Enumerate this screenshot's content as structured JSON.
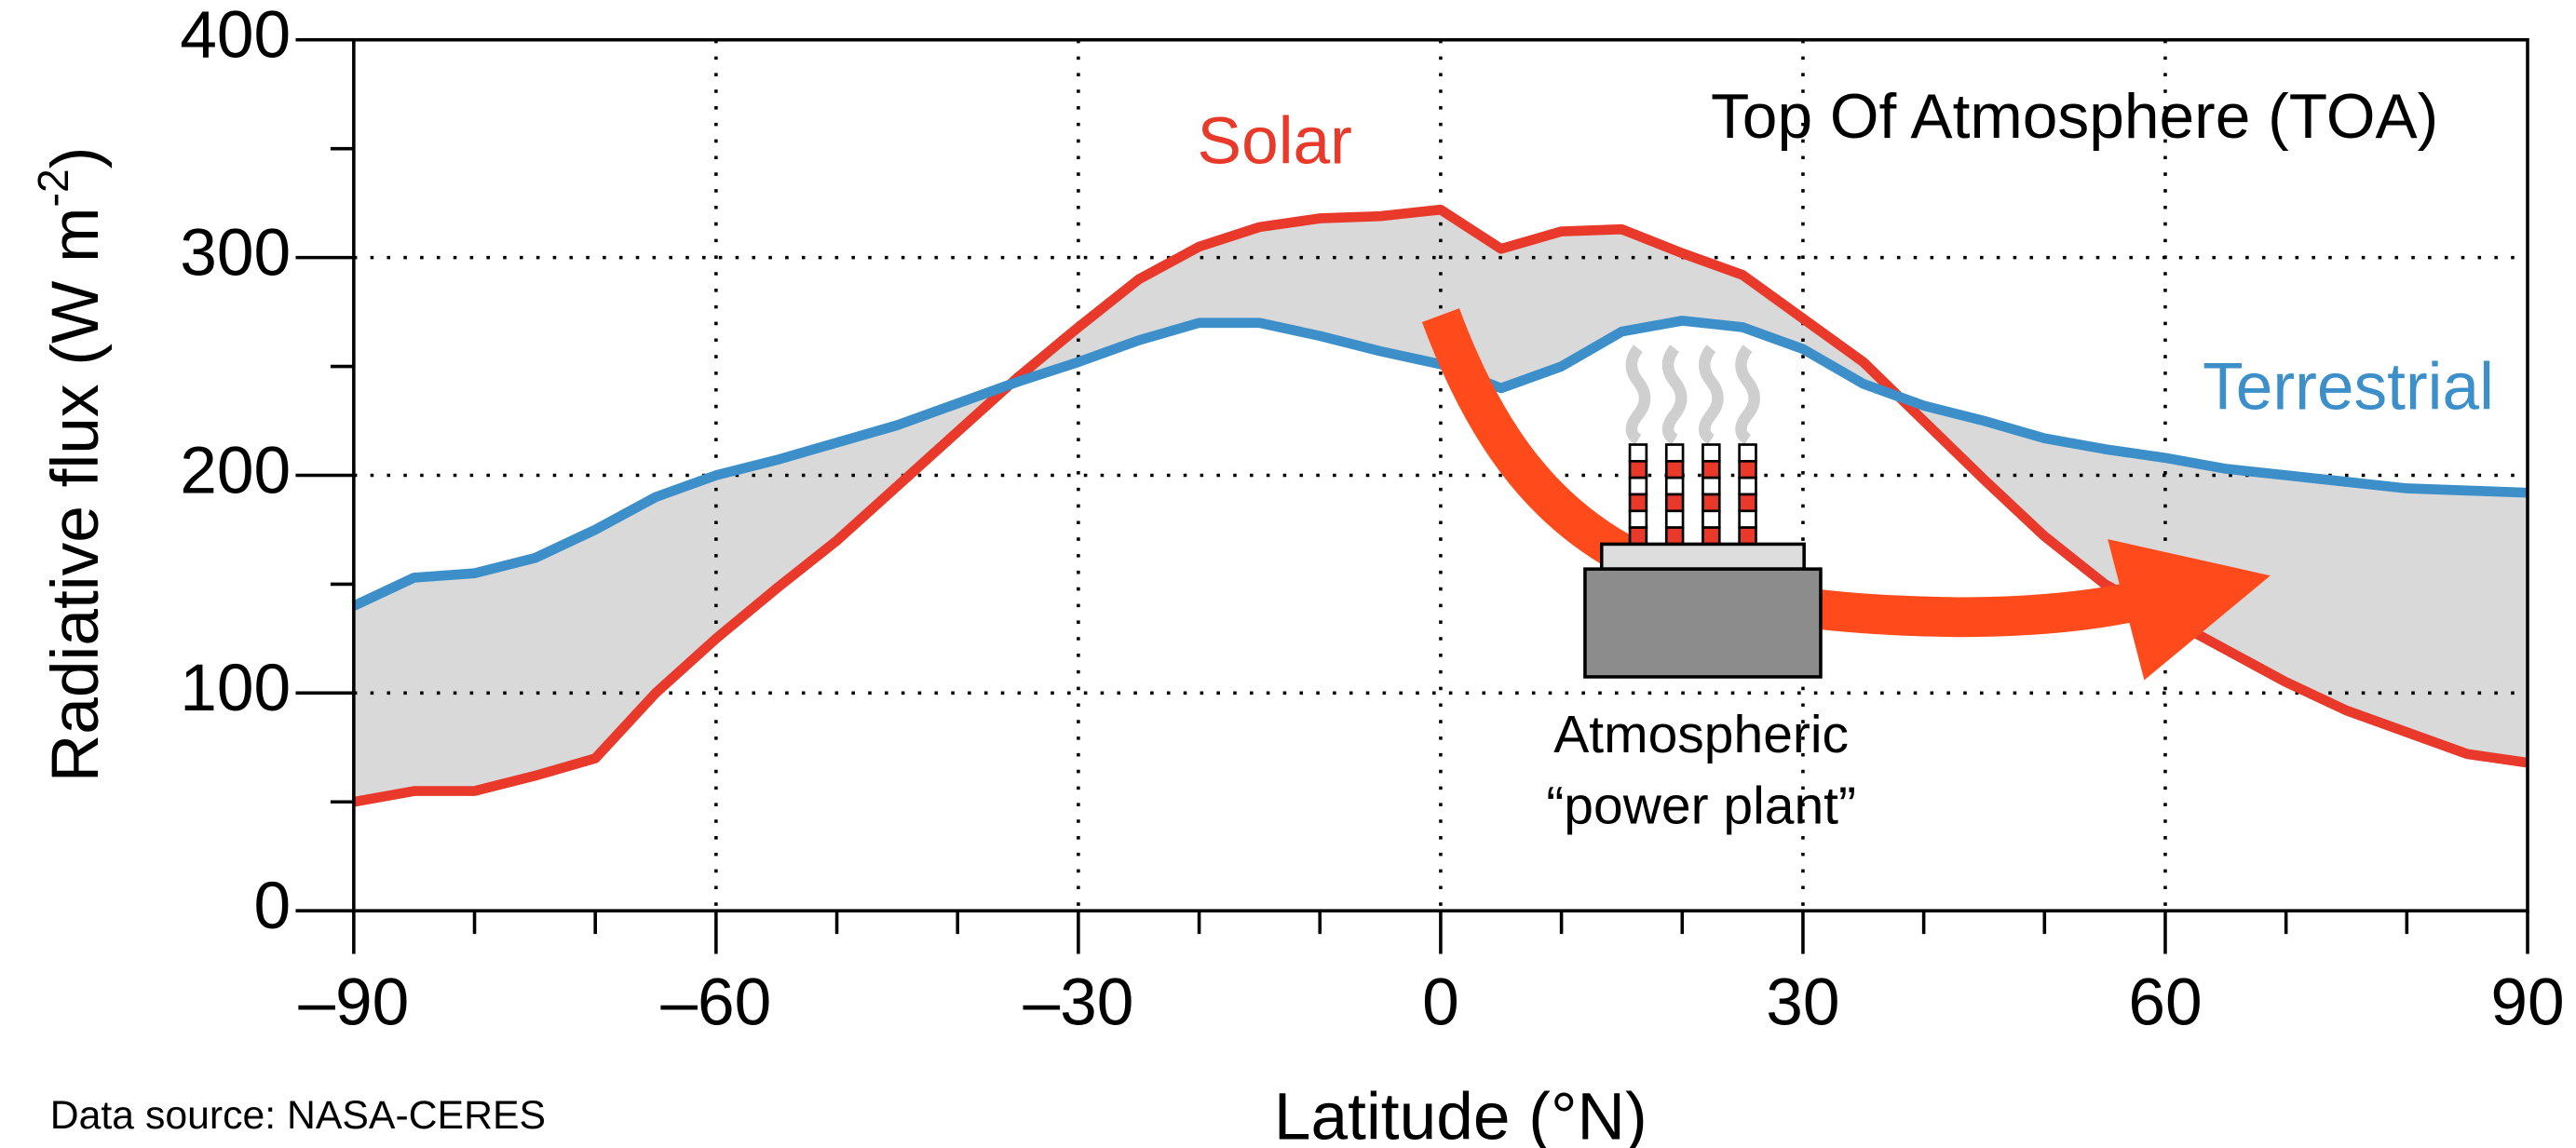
{
  "chart_data": {
    "type": "line",
    "annotation": "Top Of Atmosphere (TOA)",
    "x_label": "Latitude (°N)",
    "y_label": [
      "Radiative flux (W m",
      "-2",
      ")"
    ],
    "plant_label": [
      "Atmospheric",
      "“power plant”"
    ],
    "source": "Data source: NASA-CERES",
    "x": [
      -90,
      -85,
      -80,
      -75,
      -70,
      -65,
      -60,
      -55,
      -50,
      -45,
      -40,
      -35,
      -30,
      -25,
      -20,
      -15,
      -10,
      -5,
      0,
      5,
      10,
      15,
      20,
      25,
      30,
      35,
      40,
      45,
      50,
      55,
      60,
      65,
      70,
      75,
      80,
      85,
      90
    ],
    "series": [
      {
        "name": "Solar",
        "color": "#e8392a",
        "values": [
          50,
          55,
          55,
          62,
          70,
          100,
          125,
          148,
          170,
          195,
          220,
          245,
          268,
          290,
          305,
          314,
          318,
          319,
          322,
          304,
          312,
          313,
          302,
          292,
          272,
          252,
          225,
          198,
          172,
          150,
          135,
          120,
          105,
          92,
          82,
          72,
          68
        ]
      },
      {
        "name": "Terrestrial",
        "color": "#3d8fc9",
        "values": [
          140,
          153,
          155,
          162,
          175,
          190,
          200,
          207,
          215,
          223,
          233,
          243,
          252,
          262,
          270,
          270,
          264,
          257,
          251,
          240,
          250,
          266,
          271,
          268,
          258,
          242,
          232,
          225,
          217,
          212,
          208,
          203,
          200,
          197,
          194,
          193,
          192
        ]
      }
    ],
    "fill_between": true,
    "fill_color": "#d9d9d9",
    "xlim": [
      -90,
      90
    ],
    "xticks": [
      {
        "value": -90,
        "label": "–90"
      },
      {
        "value": -60,
        "label": "–60"
      },
      {
        "value": -30,
        "label": "–30"
      },
      0,
      30,
      60,
      90
    ],
    "xminorticks": [
      -80,
      -70,
      -50,
      -40,
      -20,
      -10,
      10,
      20,
      40,
      50,
      70,
      80
    ],
    "ylim": [
      0,
      400
    ],
    "yticks": [
      0,
      100,
      200,
      300,
      400
    ],
    "yminorticks": [
      50,
      150,
      250,
      350
    ],
    "grid": true
  }
}
